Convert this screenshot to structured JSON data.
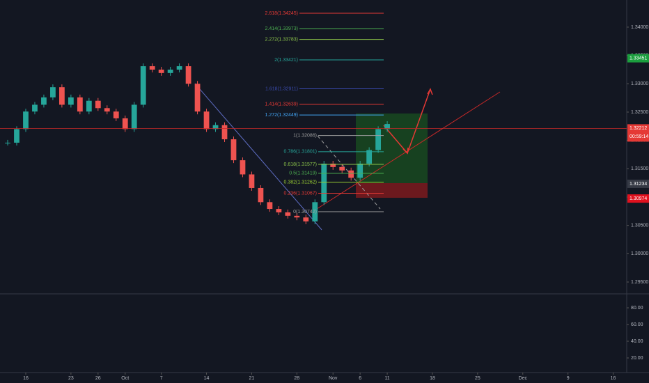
{
  "chart_data": {
    "type": "candlestick",
    "x": [
      -2,
      -1,
      0,
      1,
      2,
      3,
      4,
      5,
      6,
      7,
      8,
      9,
      10,
      11,
      12,
      13,
      14,
      15,
      16,
      17,
      18,
      19,
      20,
      21,
      22,
      23,
      24,
      25,
      26,
      27,
      28,
      29,
      30,
      31,
      32,
      33,
      34,
      35,
      36,
      37,
      38,
      39,
      40
    ],
    "values": [
      1.3196,
      1.322,
      1.3251,
      1.3263,
      1.3276,
      1.3294,
      1.3263,
      1.3276,
      1.3251,
      1.327,
      1.3257,
      1.3251,
      1.3239,
      1.322,
      1.3263,
      1.3331,
      1.3325,
      1.3319,
      1.3325,
      1.3331,
      1.33,
      1.3251,
      1.322,
      1.3227,
      1.3202,
      1.3165,
      1.314,
      1.3116,
      1.3091,
      1.3079,
      1.3073,
      1.3067,
      1.3064,
      1.3057,
      1.3091,
      1.3159,
      1.3153,
      1.3147,
      1.3134,
      1.3159,
      1.3183,
      1.322,
      1.3229
    ],
    "up_color": "#26a69a",
    "down_color": "#ef5350",
    "xlim": [
      -2.85,
      66.5
    ],
    "xticks": [
      {
        "value": 0,
        "label": "16"
      },
      {
        "value": 5,
        "label": "23"
      },
      {
        "value": 8,
        "label": "26"
      },
      {
        "value": 11,
        "label": "Oct"
      },
      {
        "value": 15,
        "label": "7"
      },
      {
        "value": 20,
        "label": "14"
      },
      {
        "value": 25,
        "label": "21"
      },
      {
        "value": 30,
        "label": "28"
      },
      {
        "value": 34,
        "label": "Nov"
      },
      {
        "value": 37,
        "label": "6"
      },
      {
        "value": 40,
        "label": "11"
      },
      {
        "value": 45,
        "label": "18"
      },
      {
        "value": 50,
        "label": "25"
      },
      {
        "value": 55,
        "label": "Dec"
      },
      {
        "value": 60,
        "label": "9"
      },
      {
        "value": 65,
        "label": "16"
      }
    ],
    "ylim": [
      1.29291,
      1.34479
    ],
    "yticks": [
      {
        "value": 1.34,
        "label": "1.34000"
      },
      {
        "value": 1.335,
        "label": "1.33500"
      },
      {
        "value": 1.33,
        "label": "1.33000"
      },
      {
        "value": 1.325,
        "label": "1.32500"
      },
      {
        "value": 1.32,
        "label": "1.32000"
      },
      {
        "value": 1.315,
        "label": "1.31500"
      },
      {
        "value": 1.31,
        "label": "1.31000"
      },
      {
        "value": 1.305,
        "label": "1.30500"
      },
      {
        "value": 1.3,
        "label": "1.30000"
      },
      {
        "value": 1.295,
        "label": "1.29500"
      }
    ],
    "fib": [
      {
        "label": "2.618(1.34245)",
        "value": 1.34245,
        "color": "#e53935"
      },
      {
        "label": "2.414(1.33973)",
        "value": 1.33973,
        "color": "#4caf50"
      },
      {
        "label": "2.272(1.33783)",
        "value": 1.33783,
        "color": "#8bc34a"
      },
      {
        "label": "2(1.33421)",
        "value": 1.33421,
        "color": "#26a69a"
      },
      {
        "label": "1.618(1.32911)",
        "value": 1.32911,
        "color": "#3949ab"
      },
      {
        "label": "1.414(1.32639)",
        "value": 1.32639,
        "color": "#e53935"
      },
      {
        "label": "1.272(1.32449)",
        "value": 1.32449,
        "color": "#42a5f5"
      },
      {
        "label": "1(1.32086)",
        "value": 1.32086,
        "color": "#9e9e9e"
      },
      {
        "label": "0.786(1.31801)",
        "value": 1.31801,
        "color": "#26a69a"
      },
      {
        "label": "0.618(1.31577)",
        "value": 1.31577,
        "color": "#8bc34a"
      },
      {
        "label": "0.5(1.31419)",
        "value": 1.31419,
        "color": "#4caf50"
      },
      {
        "label": "0.382(1.31262)",
        "value": 1.31262,
        "color": "#9acd32"
      },
      {
        "label": "0.236(1.31067)",
        "value": 1.31067,
        "color": "#e53935"
      },
      {
        "label": "0(1.30742)",
        "value": 1.30742,
        "color": "#9e9e9e"
      }
    ],
    "markers": [
      {
        "label": "1.33451",
        "value": 1.33451,
        "color": "#1b9e3e"
      },
      {
        "label": "1.32212",
        "value": 1.32212,
        "color": "#e53935"
      },
      {
        "label": "1.31234",
        "value": 1.31234,
        "color": "#363a45"
      },
      {
        "label": "1.30974",
        "value": 1.30974,
        "color": "#e0111e"
      }
    ],
    "countdown": "00:59:14",
    "lower_ylim": [
      2.5,
      96.7
    ],
    "lower_yticks": [
      {
        "value": 80,
        "label": "80.00"
      },
      {
        "value": 60,
        "label": "60.00"
      },
      {
        "value": 40,
        "label": "40.00"
      },
      {
        "value": 20,
        "label": "20.00"
      }
    ]
  }
}
